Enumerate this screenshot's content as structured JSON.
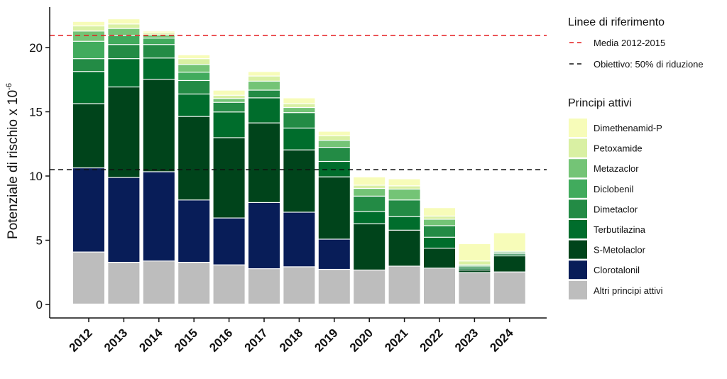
{
  "chart_data": {
    "type": "bar",
    "stacked": true,
    "categories": [
      "2012",
      "2013",
      "2014",
      "2015",
      "2016",
      "2017",
      "2018",
      "2019",
      "2020",
      "2021",
      "2022",
      "2023",
      "2024"
    ],
    "ylabel": "Potenziale di rischio x 10",
    "ylabel_exponent": "-6",
    "ylim": [
      0,
      22.5
    ],
    "yticks": [
      0,
      5,
      10,
      15,
      20
    ],
    "series": [
      {
        "name": "Altri principi attivi",
        "color": "#bdbdbd",
        "values": [
          4.05,
          3.25,
          3.35,
          3.25,
          3.05,
          2.75,
          2.9,
          2.7,
          2.65,
          2.95,
          2.8,
          2.45,
          2.5
        ]
      },
      {
        "name": "Clorotalonil",
        "color": "#081d58",
        "values": [
          6.55,
          6.6,
          6.95,
          4.85,
          3.65,
          5.15,
          4.25,
          2.35,
          0,
          0,
          0,
          0,
          0
        ]
      },
      {
        "name": "S-Metolaclor",
        "color": "#00441b",
        "values": [
          5.0,
          7.05,
          7.2,
          6.5,
          6.25,
          6.2,
          4.85,
          4.85,
          3.6,
          2.8,
          1.55,
          0.2,
          1.25
        ]
      },
      {
        "name": "Terbutilazina",
        "color": "#006d2c",
        "values": [
          2.5,
          2.2,
          1.65,
          1.75,
          2.0,
          1.95,
          1.7,
          1.2,
          0.95,
          1.05,
          0.85,
          0.15,
          0.15
        ]
      },
      {
        "name": "Dimetaclor",
        "color": "#238b45",
        "values": [
          1.0,
          1.1,
          1.05,
          1.05,
          0.75,
          0.6,
          1.2,
          1.1,
          1.2,
          1.3,
          0.9,
          0.15,
          0.1
        ]
      },
      {
        "name": "Diclobenil",
        "color": "#41ab5d",
        "values": [
          1.35,
          0.7,
          0.5,
          0.65,
          0,
          0,
          0,
          0,
          0,
          0,
          0,
          0,
          0
        ]
      },
      {
        "name": "Metazaclor",
        "color": "#74c476",
        "values": [
          0.8,
          0.55,
          0.25,
          0.6,
          0.3,
          0.7,
          0.4,
          0.55,
          0.6,
          0.85,
          0.5,
          0.1,
          0.1
        ]
      },
      {
        "name": "Petoxamide",
        "color": "#d9f0a3",
        "values": [
          0.4,
          0.35,
          0.15,
          0.45,
          0.25,
          0.4,
          0.3,
          0.35,
          0.25,
          0.25,
          0.25,
          0.3,
          0.0
        ]
      },
      {
        "name": "Dimethenamid-P",
        "color": "#f7fcb9",
        "values": [
          0.35,
          0.4,
          0.15,
          0.3,
          0.4,
          0.35,
          0.45,
          0.35,
          0.65,
          0.55,
          0.65,
          1.35,
          1.45
        ]
      }
    ],
    "reference_lines": [
      {
        "name": "Media 2012-2015",
        "value": 20.95,
        "color": "#e41a1c"
      },
      {
        "name": "Obiettivo: 50% di riduzione",
        "value": 10.5,
        "color": "#111111"
      }
    ],
    "legend_reference_title": "Linee di riferimento",
    "legend_series_title": "Principi attivi",
    "legend_position": "right"
  }
}
